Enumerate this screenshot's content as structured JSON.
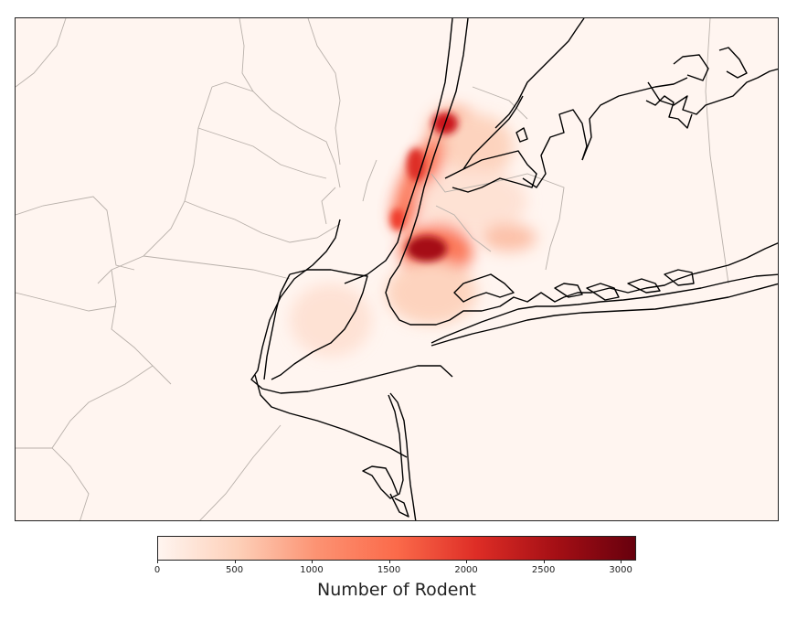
{
  "colorbar": {
    "label": "Number of Rodent",
    "ticks": [
      "0",
      "500",
      "1000",
      "1500",
      "2000",
      "2500",
      "3000"
    ],
    "min": 0,
    "max": 3100,
    "colors": [
      "#fff5f0",
      "#fdd0b9",
      "#fc9272",
      "#fb6a4a",
      "#de2d26",
      "#a50f15",
      "#67000d"
    ]
  },
  "map": {
    "colormap": "Reds",
    "background": "#fff5f0",
    "coastline_color": "#000000",
    "boundary_color": "#b8b0aa"
  }
}
